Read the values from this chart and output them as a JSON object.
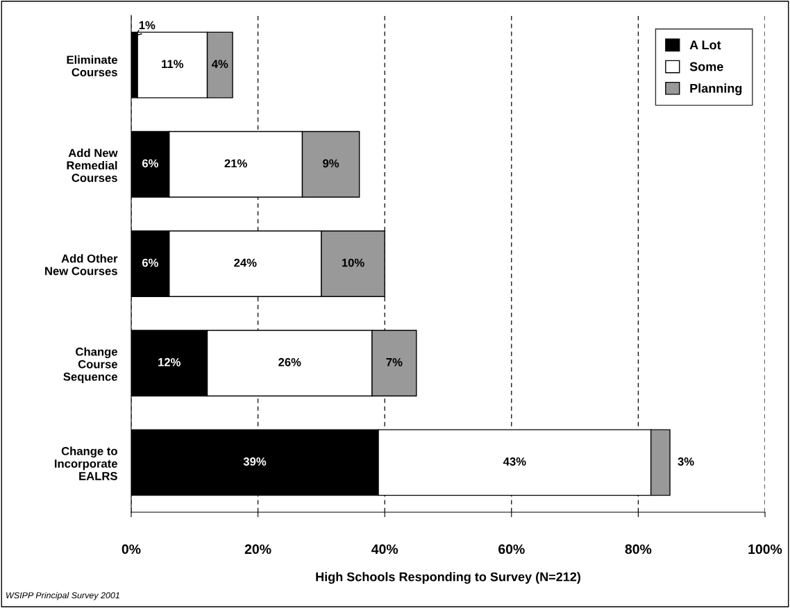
{
  "chart_data": {
    "type": "bar",
    "orientation": "horizontal",
    "stacked": true,
    "categories": [
      "Eliminate\nCourses",
      "Add New\nRemedial\nCourses",
      "Add Other\nNew Courses",
      "Change\nCourse\nSequence",
      "Change to\nIncorporate\nEALRS"
    ],
    "series": [
      {
        "name": "A Lot",
        "color": "#000000",
        "values": [
          1,
          6,
          6,
          12,
          39
        ],
        "value_labels": [
          "1%",
          "6%",
          "6%",
          "12%",
          "39%"
        ]
      },
      {
        "name": "Some",
        "color": "#ffffff",
        "values": [
          11,
          21,
          24,
          26,
          43
        ],
        "value_labels": [
          "11%",
          "21%",
          "24%",
          "26%",
          "43%"
        ]
      },
      {
        "name": "Planning",
        "color": "#999999",
        "values": [
          4,
          9,
          10,
          7,
          3
        ],
        "value_labels": [
          "4%",
          "9%",
          "10%",
          "7%",
          "3%"
        ]
      }
    ],
    "xlim": [
      0,
      100
    ],
    "xticks": [
      {
        "value": 0,
        "label": "0%"
      },
      {
        "value": 20,
        "label": "20%"
      },
      {
        "value": 40,
        "label": "40%"
      },
      {
        "value": 60,
        "label": "60%"
      },
      {
        "value": 80,
        "label": "80%"
      },
      {
        "value": 100,
        "label": "100%"
      }
    ],
    "xlabel": "High Schools Responding to Survey (N=212)",
    "grid": "x",
    "legend": "top right",
    "annotations": [
      "WSIPP Principal Survey 2001"
    ]
  }
}
